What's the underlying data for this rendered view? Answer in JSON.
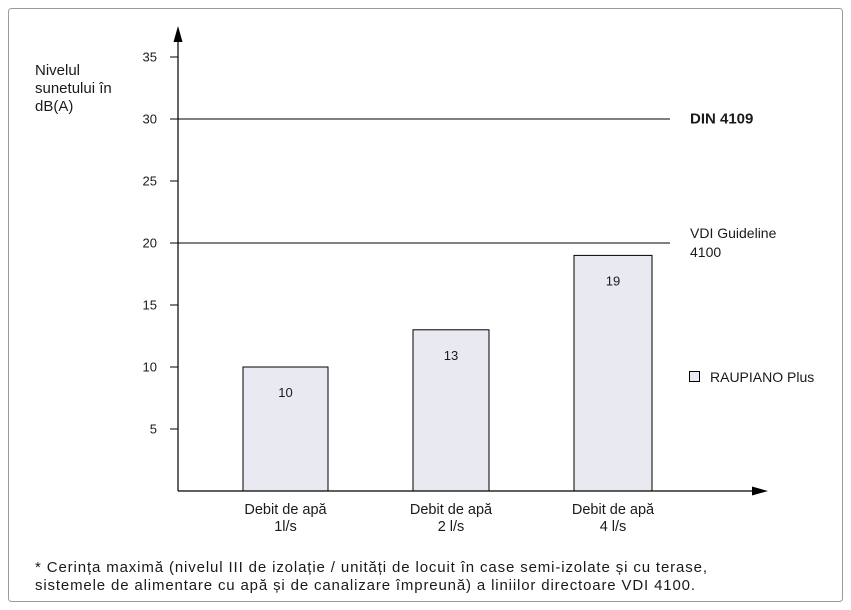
{
  "chart_data": {
    "type": "bar",
    "ylabel": [
      "Nivelul",
      "sunetului în",
      "dB(A)"
    ],
    "ylim": [
      0,
      35
    ],
    "yticks": [
      5,
      10,
      15,
      20,
      25,
      30,
      35
    ],
    "grid": false,
    "categories": [
      {
        "lines": [
          "Debit de apă",
          "1l/s"
        ]
      },
      {
        "lines": [
          "Debit de apă",
          "2 l/s"
        ]
      },
      {
        "lines": [
          "Debit de apă",
          "4 l/s"
        ]
      }
    ],
    "series": [
      {
        "name": "RAUPIANO Plus",
        "values": [
          10,
          13,
          19
        ],
        "color": "#e9e9f2"
      }
    ],
    "reference_lines": [
      {
        "value": 30,
        "label": [
          "DIN 4109"
        ]
      },
      {
        "value": 20,
        "label": [
          "VDI Guideline",
          "4100"
        ]
      }
    ],
    "legend": {
      "position": "right"
    }
  },
  "footnote": [
    "* Cerința maximă (nivelul III de izolație / unități de locuit în case semi-izolate și cu terase,",
    "sistemele de alimentare cu apă și de canalizare împreună) a liniilor directoare VDI 4100."
  ]
}
